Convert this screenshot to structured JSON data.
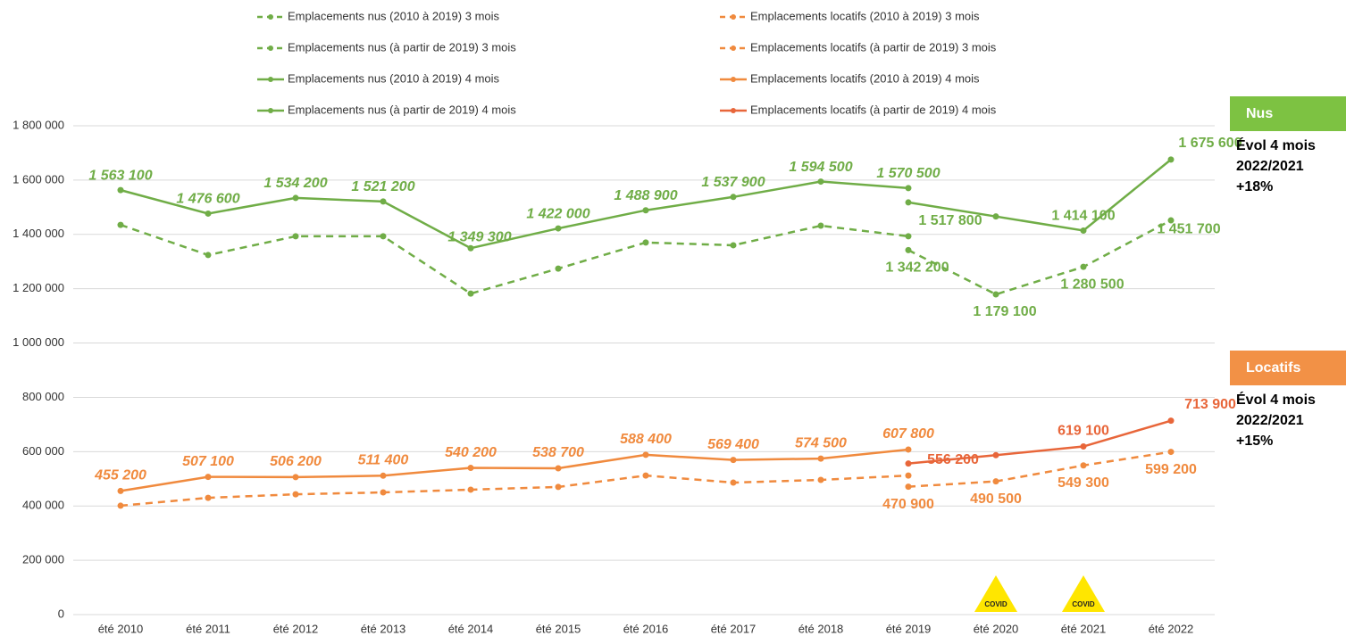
{
  "chart_data": {
    "type": "line",
    "categories": [
      "été 2010",
      "été 2011",
      "été 2012",
      "été 2013",
      "été 2014",
      "été 2015",
      "été 2016",
      "été 2017",
      "été 2018",
      "été 2019",
      "été 2020",
      "été 2021",
      "été 2022"
    ],
    "ylim": [
      0,
      1800000
    ],
    "yticks": [
      0,
      {
        "value": 200000,
        "label": "200 000"
      },
      {
        "value": 400000,
        "label": "400 000"
      },
      {
        "value": 600000,
        "label": "600 000"
      },
      {
        "value": 800000,
        "label": "800 000"
      },
      {
        "value": 1000000,
        "label": "1 000 000"
      },
      {
        "value": 1200000,
        "label": "1 200 000"
      },
      {
        "value": 1400000,
        "label": "1 400 000"
      },
      {
        "value": 1600000,
        "label": "1 600 000"
      },
      {
        "value": 1800000,
        "label": "1 800 000"
      }
    ],
    "grid": true,
    "legend": "top",
    "series": [
      {
        "name": "Emplacements nus (2010 à 2019) 3 mois",
        "color": "#70ad47",
        "dashed": true,
        "values": [
          1435000,
          1324000,
          1393000,
          1393000,
          1182000,
          1274000,
          1370000,
          1360000,
          1432000,
          1393000,
          null,
          null,
          null
        ]
      },
      {
        "name": "Emplacements nus (à partir de 2019) 3 mois",
        "color": "#70ad47",
        "dashed": true,
        "values": [
          null,
          null,
          null,
          null,
          null,
          null,
          null,
          null,
          null,
          1342200,
          1179100,
          1280500,
          1451700
        ],
        "value_labels": [
          null,
          null,
          null,
          null,
          null,
          null,
          null,
          null,
          null,
          "1 342 200",
          "1 179 100",
          "1 280 500",
          "1 451 700"
        ]
      },
      {
        "name": "Emplacements nus (2010 à 2019) 4 mois",
        "color": "#70ad47",
        "dashed": false,
        "values": [
          1563100,
          1476600,
          1534200,
          1521200,
          1349300,
          1422000,
          1488900,
          1537900,
          1594500,
          1570500,
          null,
          null,
          null
        ],
        "value_labels": [
          "1 563 100",
          "1 476 600",
          "1 534 200",
          "1 521 200",
          "1 349 300",
          "1 422 000",
          "1 488 900",
          "1 537 900",
          "1 594 500",
          "1 570 500",
          null,
          null,
          null
        ]
      },
      {
        "name": "Emplacements nus (à partir de 2019) 4 mois",
        "color": "#70ad47",
        "dashed": false,
        "values": [
          null,
          null,
          null,
          null,
          null,
          null,
          null,
          null,
          null,
          1517800,
          1466000,
          1414100,
          1675600
        ],
        "value_labels": [
          null,
          null,
          null,
          null,
          null,
          null,
          null,
          null,
          null,
          "1 517 800",
          null,
          "1 414 100",
          "1 675 600"
        ]
      },
      {
        "name": "Emplacements locatifs (2010 à 2019) 3 mois",
        "color": "#f08a3e",
        "dashed": true,
        "values": [
          401000,
          430000,
          443000,
          450000,
          460000,
          470000,
          512000,
          486000,
          496000,
          512000,
          null,
          null,
          null
        ]
      },
      {
        "name": "Emplacements locatifs (à partir de 2019) 3 mois",
        "color": "#f08a3e",
        "dashed": true,
        "values": [
          null,
          null,
          null,
          null,
          null,
          null,
          null,
          null,
          null,
          470900,
          490500,
          549300,
          599200
        ],
        "value_labels": [
          null,
          null,
          null,
          null,
          null,
          null,
          null,
          null,
          null,
          "470 900",
          "490 500",
          "549 300",
          "599 200"
        ]
      },
      {
        "name": "Emplacements locatifs (2010 à 2019) 4 mois",
        "color": "#f08a3e",
        "dashed": false,
        "values": [
          455200,
          507100,
          506200,
          511400,
          540200,
          538700,
          588400,
          569400,
          574500,
          607800,
          null,
          null,
          null
        ],
        "value_labels": [
          "455 200",
          "507 100",
          "506 200",
          "511 400",
          "540 200",
          "538 700",
          "588 400",
          "569 400",
          "574 500",
          "607 800",
          null,
          null,
          null
        ]
      },
      {
        "name": "Emplacements locatifs (à partir de 2019) 4 mois",
        "color": "#e8663a",
        "dashed": false,
        "values": [
          null,
          null,
          null,
          null,
          null,
          null,
          null,
          null,
          null,
          556200,
          587000,
          619100,
          713900
        ],
        "value_labels": [
          null,
          null,
          null,
          null,
          null,
          null,
          null,
          null,
          null,
          "556 200",
          null,
          "619 100",
          "713 900"
        ]
      }
    ],
    "side_notes": [
      {
        "title": "Nus",
        "color": "#7dc242",
        "lines": [
          "Évol 4 mois",
          "2022/2021",
          "+18%"
        ]
      },
      {
        "title": "Locatifs",
        "color": "#f29146",
        "lines": [
          "Évol 4 mois",
          "2022/2021",
          "+15%"
        ]
      }
    ],
    "covid_annotations": [
      {
        "category": "été 2020",
        "label": "COVID"
      },
      {
        "category": "été 2021",
        "label": "COVID"
      }
    ]
  }
}
